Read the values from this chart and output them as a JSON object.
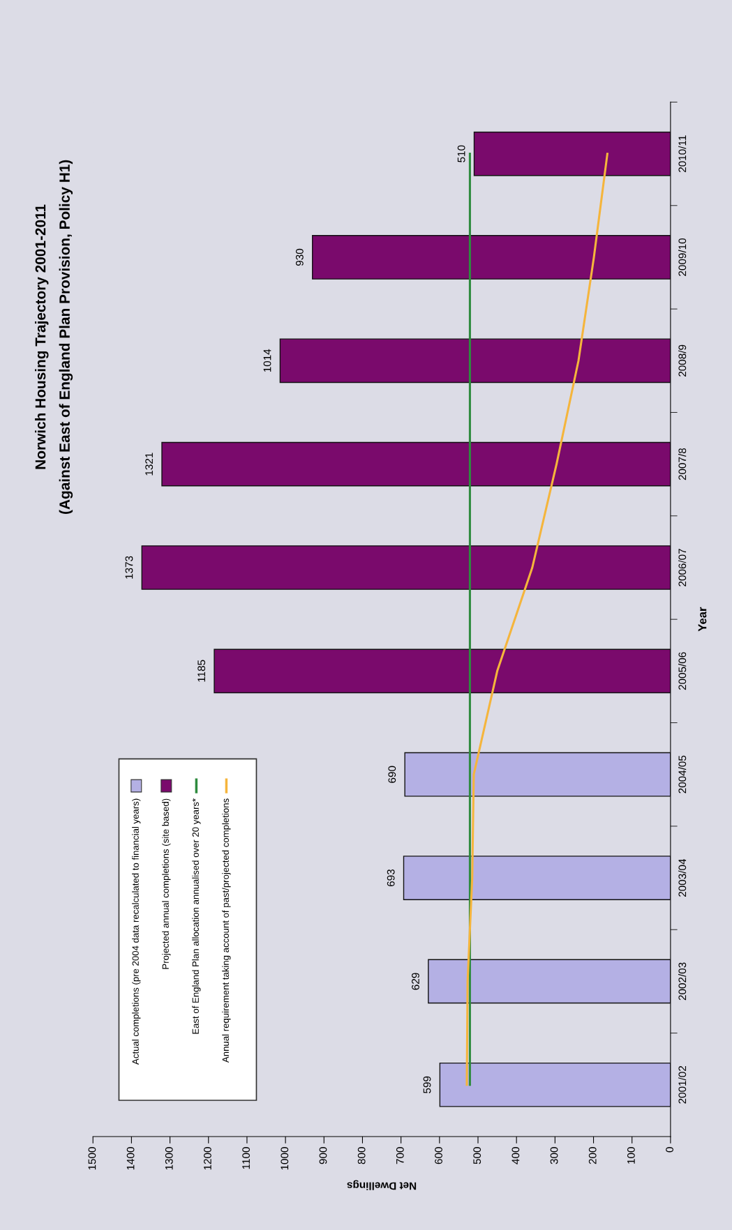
{
  "chart_data": {
    "type": "bar",
    "orientation": "horizontal",
    "title": "Norwich Housing Trajectory 2001-2011",
    "subtitle": "(Against East of England Plan Provision, Policy H1)",
    "xlabel": "Net Dwellings",
    "ylabel": "Year",
    "categories": [
      "2010/11",
      "2009/10",
      "2008/9",
      "2007/8",
      "2006/07",
      "2005/06",
      "2004/05",
      "2003/04",
      "2002/03",
      "2001/02"
    ],
    "series": [
      {
        "name": "Actual completions (pre 2004 data recalculated to financial years)",
        "color": "#b4b0e4",
        "values": [
          null,
          null,
          null,
          null,
          null,
          null,
          690,
          693,
          629,
          599
        ],
        "value_labels": [
          null,
          null,
          null,
          null,
          null,
          null,
          "690",
          "693",
          "629",
          "599"
        ]
      },
      {
        "name": "Projected annual completions (site based)",
        "color": "#7a0a6c",
        "values": [
          510,
          930,
          1014,
          1321,
          1373,
          1185,
          null,
          null,
          null,
          null
        ],
        "value_labels": [
          "510",
          "930",
          "1014",
          "1321",
          "1373",
          "1185",
          null,
          null,
          null,
          null
        ]
      },
      {
        "name": "East of England Plan allocation annualised over 20 years*",
        "type": "line",
        "color": "#2e8b3e",
        "values": [
          521,
          521,
          521,
          521,
          521,
          521,
          521,
          521,
          521,
          521
        ]
      },
      {
        "name": "Annual requirement taking account of past/projected completions",
        "type": "line",
        "color": "#f5b53c",
        "values": [
          164,
          199,
          239,
          296,
          359,
          450,
          511,
          515,
          527,
          529
        ]
      }
    ],
    "xlim": [
      1500,
      0
    ],
    "xticks": [
      0,
      100,
      200,
      300,
      400,
      500,
      600,
      700,
      800,
      900,
      1000,
      1100,
      1200,
      1300,
      1400,
      1500
    ],
    "grid": false,
    "legend": "lower left",
    "marker": "none",
    "line_style": "solid"
  }
}
